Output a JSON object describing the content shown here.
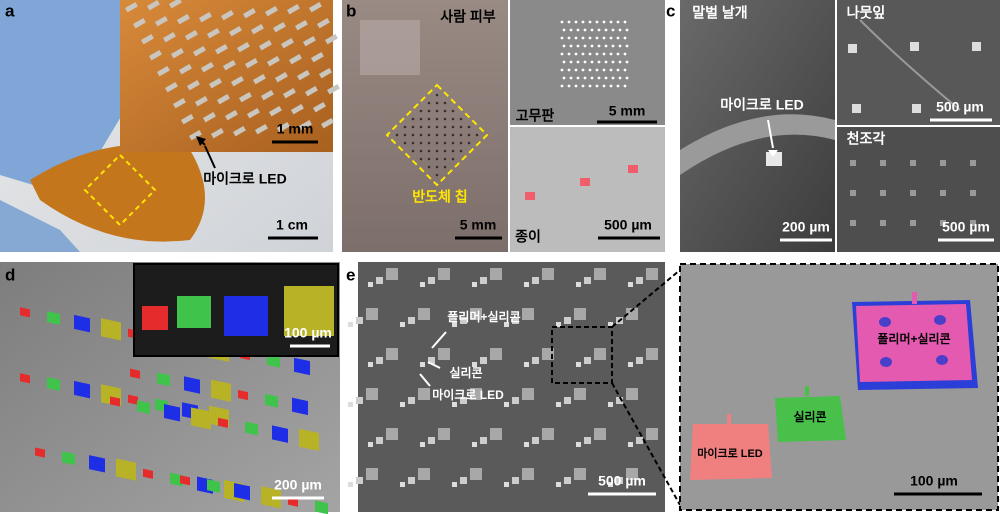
{
  "panels": {
    "a": {
      "letter": "a",
      "inset_scale": "1 mm",
      "callout": "마이크로 LED",
      "scale": "1 cm"
    },
    "b": {
      "letter": "b",
      "skin_label": "사람 피부",
      "chip_label": "반도체 칩",
      "skin_scale": "5 mm",
      "rubber_label": "고무판",
      "rubber_scale": "5 mm",
      "paper_label": "종이",
      "paper_scale": "500 µm"
    },
    "c": {
      "letter": "c",
      "wing_label": "말벌 날개",
      "callout": "마이크로 LED",
      "wing_scale": "200 µm",
      "leaf_label": "나뭇잎",
      "leaf_scale": "500 µm",
      "fabric_label": "천조각",
      "fabric_scale": "500 µm"
    },
    "d": {
      "letter": "d",
      "inset_scale": "100 µm",
      "scale": "200 µm"
    },
    "e": {
      "letter": "e",
      "labels": [
        "폴리머+실리콘",
        "실리콘",
        "마이크로 LED"
      ],
      "scale": "500 µm",
      "zoom_labels": [
        "폴리머+실리콘",
        "실리콘",
        "마이크로 LED"
      ],
      "zoom_scale": "100 µm"
    }
  }
}
